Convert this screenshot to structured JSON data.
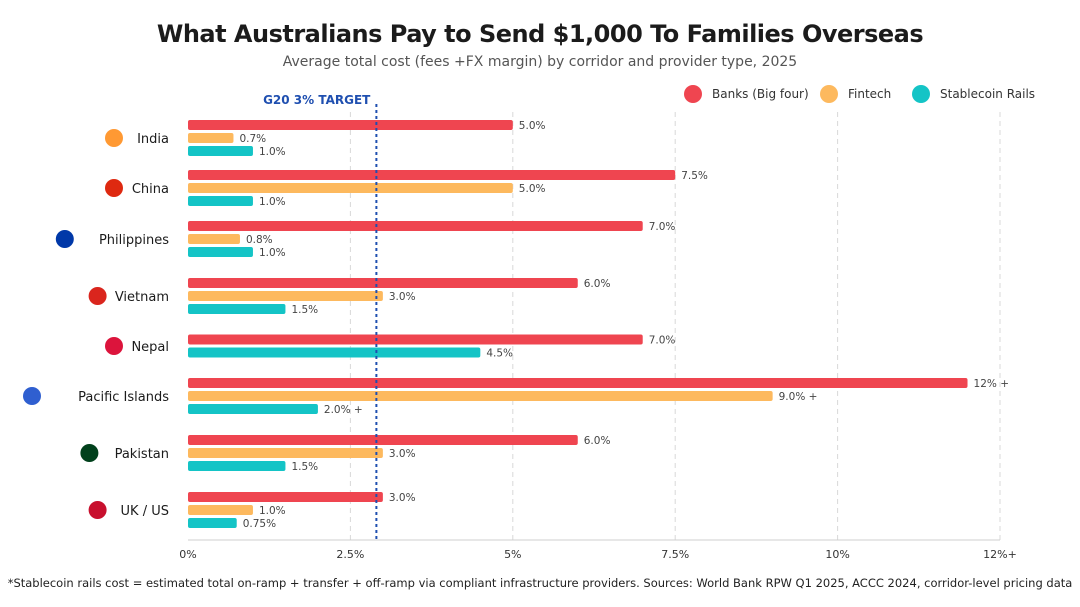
{
  "title": "What Australians Pay to Send $1,000 To Families Overseas",
  "subtitle": "Average total cost (fees +FX margin) by corridor and provider type, 2025",
  "footnote": "*Stablecoin rails cost = estimated total on-ramp + transfer + off-ramp via compliant infrastructure providers. Sources: World Bank RPW Q1 2025, ACCC 2024, corridor-level pricing data",
  "chart_data": {
    "type": "bar",
    "orientation": "horizontal",
    "title": "What Australians Pay to Send $1,000 To Families Overseas",
    "subtitle": "Average total cost (fees +FX margin) by corridor and provider type, 2025",
    "categories": [
      "India",
      "China",
      "Philippines",
      "Vietnam",
      "Nepal",
      "Pacific Islands",
      "Pakistan",
      "UK / US"
    ],
    "category_flags": [
      "india-flag-icon",
      "china-flag-icon",
      "philippines-flag-icon",
      "vietnam-flag-icon",
      "nepal-flag-icon",
      "pacific-islands-icon",
      "pakistan-flag-icon",
      "uk-us-flag-icon"
    ],
    "series": [
      {
        "name": "Banks (Big four)",
        "color": "#ef4550",
        "values": [
          5.0,
          7.5,
          7.0,
          6.0,
          7.0,
          12,
          6.0,
          3.0
        ],
        "labels": [
          "5.0%",
          "7.5%",
          "7.0%",
          "6.0%",
          "7.0%",
          "12% +",
          "6.0%",
          "3.0%"
        ]
      },
      {
        "name": "Fintech",
        "color": "#fdb95e",
        "values": [
          0.7,
          5.0,
          0.8,
          3.0,
          null,
          9.0,
          3.0,
          1.0
        ],
        "labels": [
          "0.7%",
          "5.0%",
          "0.8%",
          "3.0%",
          null,
          "9.0% +",
          "3.0%",
          "1.0%"
        ]
      },
      {
        "name": "Stablecoin Rails",
        "color": "#14c4c6",
        "values": [
          1.0,
          1.0,
          1.0,
          1.5,
          4.5,
          2.0,
          1.5,
          0.75
        ],
        "labels": [
          "1.0%",
          "1.0%",
          "1.0%",
          "1.5%",
          "4.5%",
          "2.0% +",
          "1.5%",
          "0.75%"
        ]
      }
    ],
    "xlim": [
      0,
      12.5
    ],
    "xticks": [
      0,
      2.5,
      5,
      7.5,
      10,
      12.5
    ],
    "xtick_labels": [
      "0%",
      "2.5%",
      "5%",
      "7.5%",
      "10%",
      "12%+"
    ],
    "grid": true,
    "legend": "top-right",
    "reference_line": {
      "value": 2.9,
      "label": "G20 3% TARGET",
      "color": "#1f4fb0"
    }
  }
}
